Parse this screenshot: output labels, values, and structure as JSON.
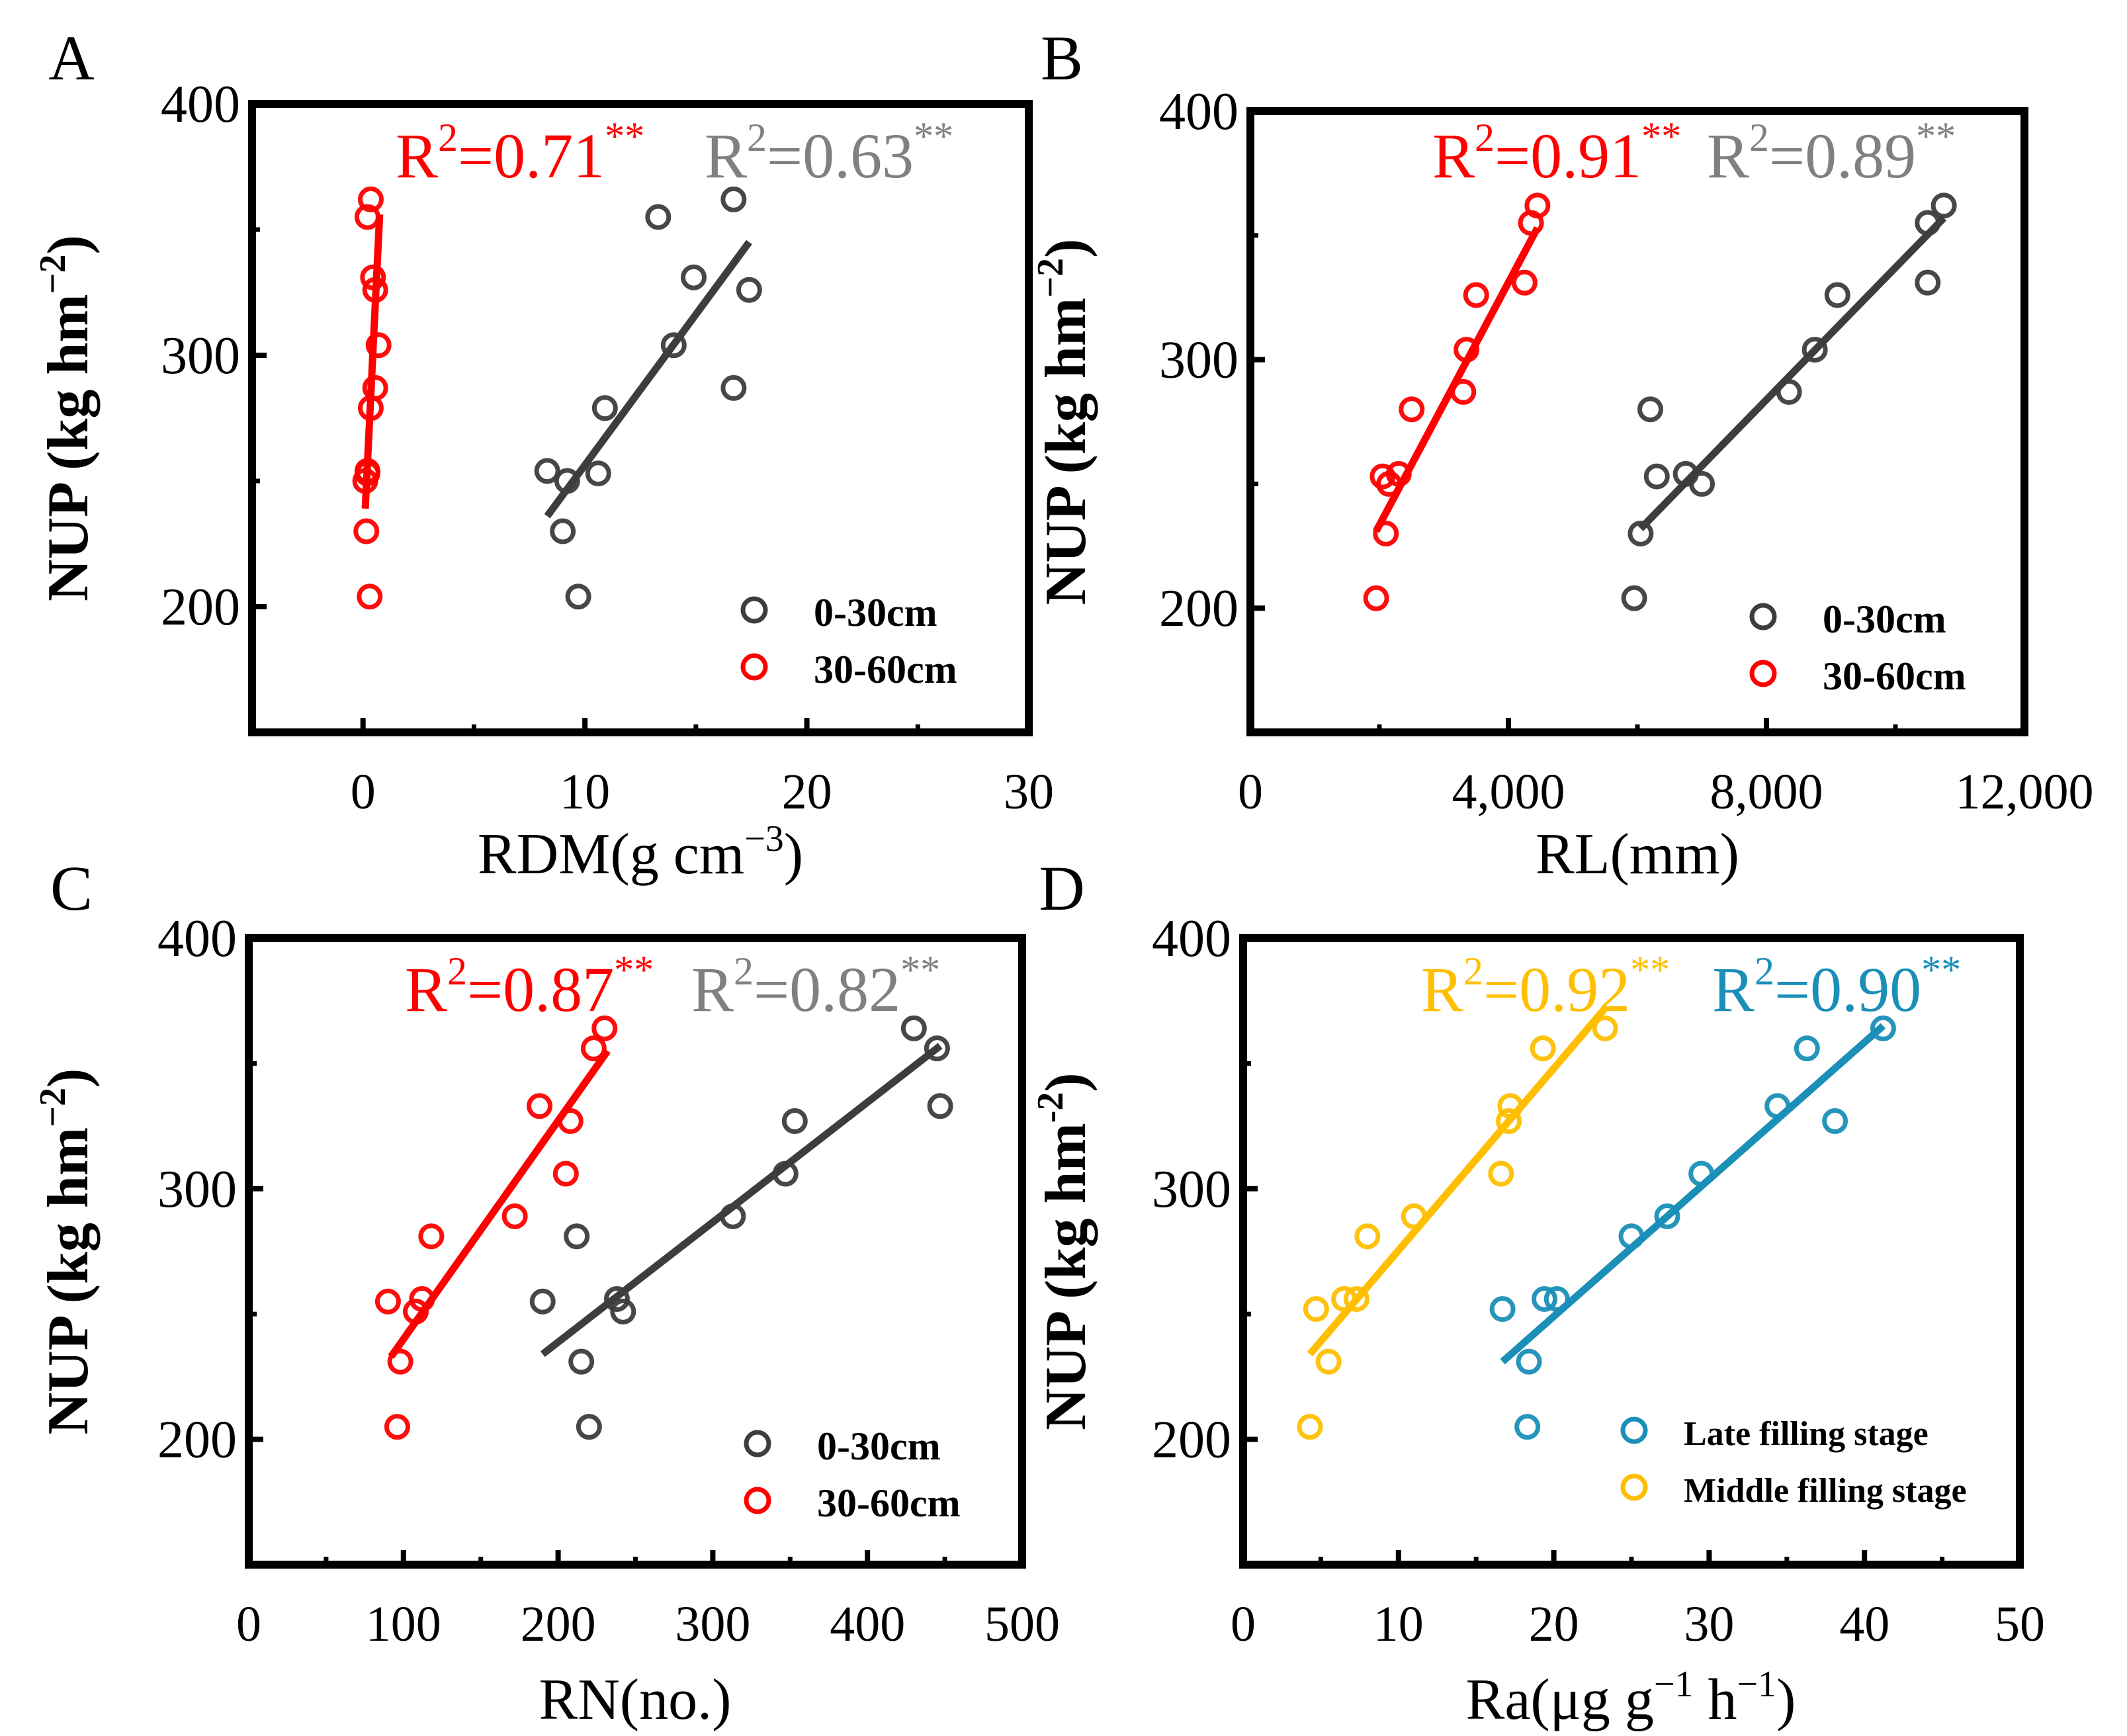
{
  "figure": {
    "background": "#ffffff",
    "axis_color": "#000000"
  },
  "chart_data": [
    {
      "panel": "A",
      "type": "scatter",
      "xlabel_main": "RDM(g cm",
      "xlabel_sup": "−3",
      "xlabel_end": ")",
      "ylabel_main": "NUP (kg hm",
      "ylabel_sup": "−2",
      "ylabel_end": ")",
      "xlim": [
        -5,
        30
      ],
      "ylim": [
        150,
        400
      ],
      "xticks": [
        0,
        10,
        20,
        30
      ],
      "xtick_labels": [
        "0",
        "10",
        "20",
        "30"
      ],
      "yticks": [
        200,
        300,
        400
      ],
      "ytick_labels": [
        "200",
        "300",
        "400"
      ],
      "legend_position": "bottom-right",
      "annotations": [
        {
          "r2_prefix": "R",
          "r2_sup": "2",
          "r2_value": "=0.71",
          "sig": "**",
          "color": "#ff0000"
        },
        {
          "r2_prefix": "R",
          "r2_sup": "2",
          "r2_value": "=0.63",
          "sig": "**",
          "color": "#808080"
        }
      ],
      "series": [
        {
          "name": "0-30cm",
          "color": "#3d3d3d",
          "x": [
            8.3,
            9.2,
            10.6,
            10.9,
            13.3,
            14.0,
            14.9,
            16.7,
            16.7,
            17.4,
            9.0,
            9.7
          ],
          "y": [
            254,
            250,
            253,
            279,
            355,
            304,
            331,
            362,
            287,
            326,
            230,
            204
          ],
          "fit": {
            "x": [
              8.3,
              17.4
            ],
            "y": [
              236,
              345
            ]
          }
        },
        {
          "name": "30-60cm",
          "color": "#ff0000",
          "x": [
            0.2,
            0.35,
            0.45,
            0.55,
            0.7,
            0.55,
            0.35,
            0.2,
            0.1,
            0.15,
            0.3,
            0.2
          ],
          "y": [
            355,
            362,
            331,
            326,
            304,
            287,
            279,
            254,
            250,
            230,
            204,
            253
          ],
          "fit": {
            "x": [
              0.1,
              0.75
            ],
            "y": [
              239,
              356
            ]
          }
        }
      ]
    },
    {
      "panel": "B",
      "type": "scatter",
      "xlabel_main": "RL(mm)",
      "xlabel_sup": "",
      "xlabel_end": "",
      "ylabel_main": "NUP (kg hm",
      "ylabel_sup": "−2",
      "ylabel_end": ")",
      "xlim": [
        0,
        12000
      ],
      "ylim": [
        150,
        400
      ],
      "xticks": [
        0,
        4000,
        8000,
        12000
      ],
      "xtick_labels": [
        "0",
        "4,000",
        "8,000",
        "12,000"
      ],
      "yticks": [
        200,
        300,
        400
      ],
      "ytick_labels": [
        "200",
        "300",
        "400"
      ],
      "legend_position": "bottom-right",
      "annotations": [
        {
          "r2_prefix": "R",
          "r2_sup": "2",
          "r2_value": "=0.91",
          "sig": "**",
          "color": "#ff0000"
        },
        {
          "r2_prefix": "R",
          "r2_sup": "2",
          "r2_value": "=0.89",
          "sig": "**",
          "color": "#808080"
        }
      ],
      "series": [
        {
          "name": "0-30cm",
          "color": "#3d3d3d",
          "x": [
            5950,
            6050,
            6200,
            6300,
            6750,
            7000,
            8350,
            8750,
            9100,
            10500,
            10500,
            10750
          ],
          "y": [
            204,
            230,
            280,
            253,
            254,
            250,
            287,
            304,
            326,
            331,
            355,
            362
          ],
          "fit": {
            "x": [
              6050,
              10750
            ],
            "y": [
              232,
              357
            ]
          }
        },
        {
          "name": "30-60cm",
          "color": "#ff0000",
          "x": [
            1950,
            2100,
            2050,
            2150,
            2300,
            2500,
            3300,
            3350,
            3500,
            4250,
            4350,
            4450
          ],
          "y": [
            204,
            230,
            253,
            250,
            254,
            280,
            287,
            304,
            326,
            331,
            355,
            362
          ],
          "fit": {
            "x": [
              1950,
              4450
            ],
            "y": [
              231,
              353
            ]
          }
        }
      ]
    },
    {
      "panel": "C",
      "type": "scatter",
      "xlabel_main": "RN(no.)",
      "xlabel_sup": "",
      "xlabel_end": "",
      "ylabel_main": "NUP (kg hm",
      "ylabel_sup": "−2",
      "ylabel_end": ")",
      "xlim": [
        0,
        500
      ],
      "ylim": [
        150,
        400
      ],
      "xticks": [
        0,
        100,
        200,
        300,
        400,
        500
      ],
      "xtick_labels": [
        "0",
        "100",
        "200",
        "300",
        "400",
        "500"
      ],
      "yticks": [
        200,
        300,
        400
      ],
      "ytick_labels": [
        "200",
        "300",
        "400"
      ],
      "legend_position": "bottom-right",
      "annotations": [
        {
          "r2_prefix": "R",
          "r2_sup": "2",
          "r2_value": "=0.87",
          "sig": "**",
          "color": "#ff0000"
        },
        {
          "r2_prefix": "R",
          "r2_sup": "2",
          "r2_value": "=0.82",
          "sig": "**",
          "color": "#808080"
        }
      ],
      "series": [
        {
          "name": "0-30cm",
          "color": "#3d3d3d",
          "x": [
            190,
            212,
            215,
            220,
            238,
            242,
            313,
            347,
            353,
            430,
            445,
            447
          ],
          "y": [
            255,
            281,
            231,
            205,
            256,
            251,
            289,
            306,
            327,
            364,
            356,
            333
          ],
          "fit": {
            "x": [
              190,
              447
            ],
            "y": [
              234,
              357
            ]
          }
        },
        {
          "name": "30-60cm",
          "color": "#ff0000",
          "x": [
            90,
            96,
            98,
            108,
            112,
            118,
            172,
            188,
            205,
            208,
            223,
            230
          ],
          "y": [
            255,
            205,
            231,
            251,
            256,
            281,
            289,
            333,
            306,
            327,
            356,
            364
          ],
          "fit": {
            "x": [
              92,
              232
            ],
            "y": [
              233,
              355
            ]
          }
        }
      ]
    },
    {
      "panel": "D",
      "type": "scatter",
      "xlabel_main": "Ra(μg g",
      "xlabel_sup": "−1",
      "xlabel_mid": " h",
      "xlabel_sup2": "−1",
      "xlabel_end": ")",
      "ylabel_main": "NUP (kg hm",
      "ylabel_sup": "-2",
      "ylabel_end": ")",
      "xlim": [
        0,
        50
      ],
      "ylim": [
        150,
        400
      ],
      "xticks": [
        0,
        10,
        20,
        30,
        40,
        50
      ],
      "xtick_labels": [
        "0",
        "10",
        "20",
        "30",
        "40",
        "50"
      ],
      "yticks": [
        200,
        300,
        400
      ],
      "ytick_labels": [
        "200",
        "300",
        "400"
      ],
      "legend_position": "bottom-right",
      "annotations": [
        {
          "r2_prefix": "R",
          "r2_sup": "2",
          "r2_value": "=0.92",
          "sig": "**",
          "color": "#ffbf00"
        },
        {
          "r2_prefix": "R",
          "r2_sup": "2",
          "r2_value": "=0.90",
          "sig": "**",
          "color": "#1a8fb8"
        }
      ],
      "series": [
        {
          "name": "Late filling stage",
          "color": "#1a8fb8",
          "x": [
            16.7,
            18.3,
            18.4,
            19.4,
            20.2,
            25.0,
            27.3,
            29.5,
            34.4,
            36.3,
            38.1,
            41.2
          ],
          "y": [
            252,
            205,
            231,
            256,
            256,
            281,
            289,
            306,
            333,
            356,
            327,
            364
          ],
          "fit": {
            "x": [
              16.7,
              41.2
            ],
            "y": [
              231,
              365
            ]
          }
        },
        {
          "name": "Middle filling stage",
          "color": "#ffbf00",
          "x": [
            4.3,
            4.7,
            5.5,
            6.5,
            7.3,
            8.0,
            11.0,
            16.6,
            17.1,
            17.2,
            19.3,
            23.3
          ],
          "y": [
            205,
            252,
            231,
            256,
            256,
            281,
            289,
            306,
            327,
            333,
            356,
            364
          ],
          "fit": {
            "x": [
              4.3,
              23.3
            ],
            "y": [
              234,
              372
            ]
          }
        }
      ]
    }
  ]
}
